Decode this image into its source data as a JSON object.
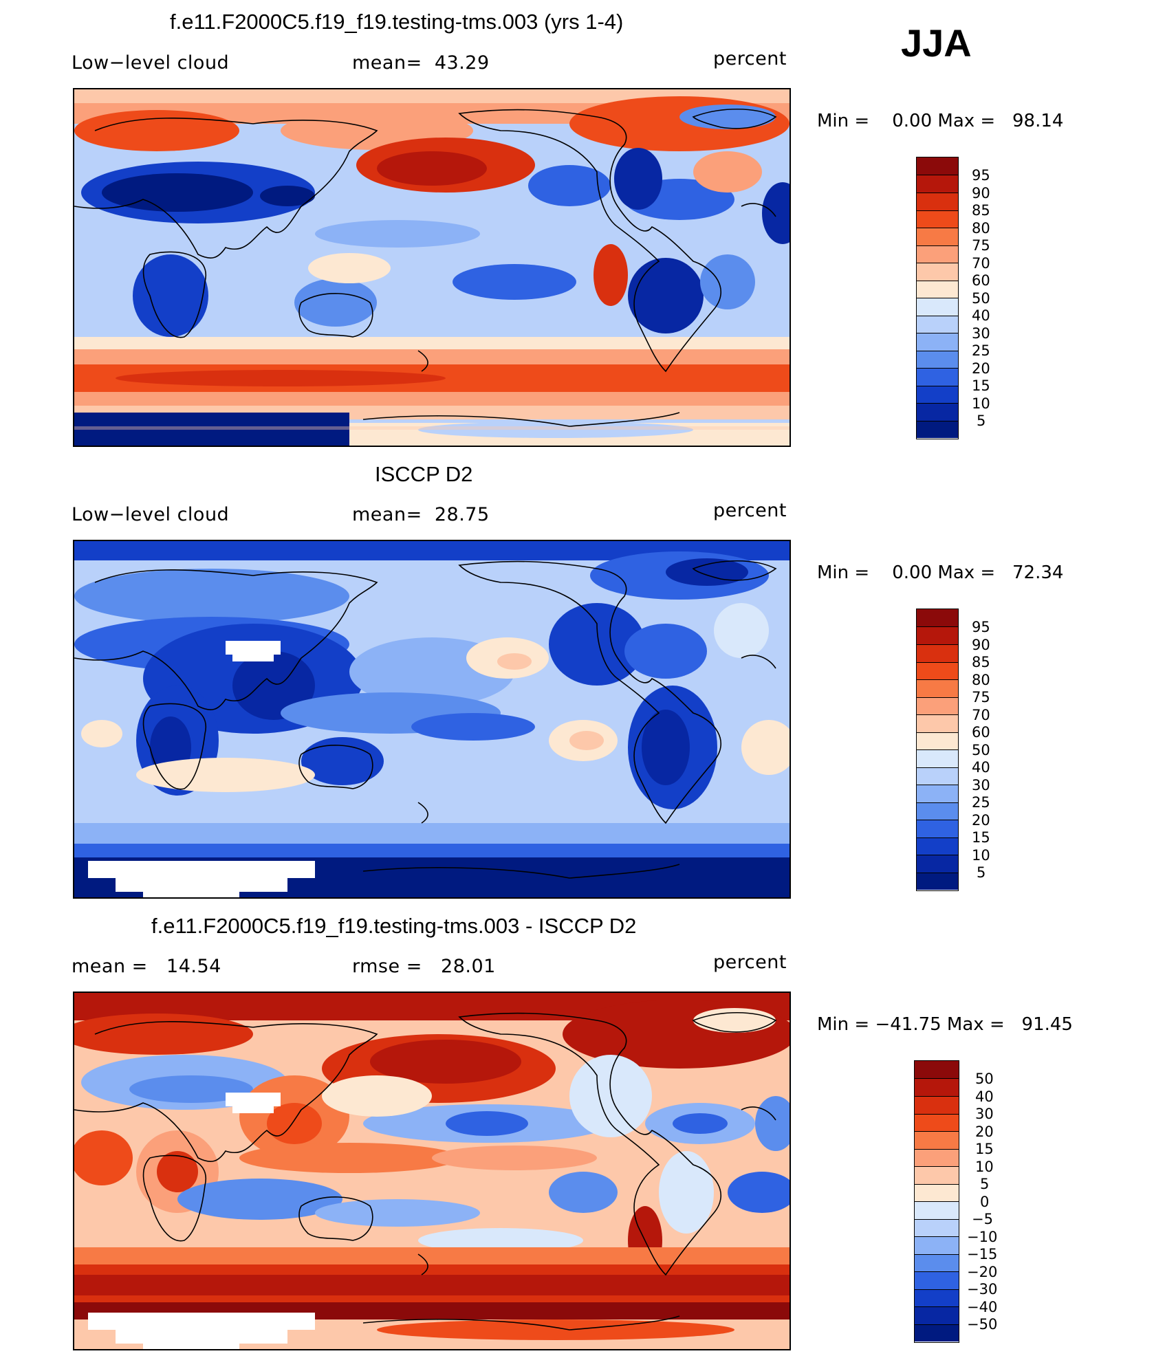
{
  "season": "JJA",
  "panels": [
    {
      "title": "f.e11.F2000C5.f19_f19.testing-tms.003 (yrs 1-4)",
      "left": "Low−level cloud",
      "middle": "mean=  43.29",
      "units": "percent",
      "minmax": "Min =    0.00 Max =   98.14",
      "colorbar_labels": [
        "95",
        "90",
        "85",
        "80",
        "75",
        "70",
        "60",
        "50",
        "40",
        "30",
        "25",
        "20",
        "15",
        "10",
        "5"
      ],
      "colors": [
        "#8b0a0a",
        "#b5170b",
        "#d9300f",
        "#ee4b1a",
        "#f77a45",
        "#fba07a",
        "#fdc8aa",
        "#fde8d2",
        "#d9e8fb",
        "#b9d1fa",
        "#8cb2f6",
        "#5b8ded",
        "#2f62e2",
        "#133fc8",
        "#0727a3",
        "#001a80"
      ]
    },
    {
      "title": "ISCCP D2",
      "left": "Low−level cloud",
      "middle": "mean=  28.75",
      "units": "percent",
      "minmax": "Min =    0.00 Max =   72.34",
      "colorbar_labels": [
        "95",
        "90",
        "85",
        "80",
        "75",
        "70",
        "60",
        "50",
        "40",
        "30",
        "25",
        "20",
        "15",
        "10",
        "5"
      ],
      "colors": [
        "#8b0a0a",
        "#b5170b",
        "#d9300f",
        "#ee4b1a",
        "#f77a45",
        "#fba07a",
        "#fdc8aa",
        "#fde8d2",
        "#d9e8fb",
        "#b9d1fa",
        "#8cb2f6",
        "#5b8ded",
        "#2f62e2",
        "#133fc8",
        "#0727a3",
        "#001a80"
      ]
    },
    {
      "title": "f.e11.F2000C5.f19_f19.testing-tms.003 - ISCCP D2",
      "left": "mean =   14.54",
      "middle": "rmse =   28.01",
      "units": "percent",
      "minmax": "Min = −41.75 Max =   91.45",
      "colorbar_labels": [
        "50",
        "40",
        "30",
        "20",
        "15",
        "10",
        "5",
        "0",
        "−5",
        "−10",
        "−15",
        "−20",
        "−30",
        "−40",
        "−50"
      ],
      "colors": [
        "#8b0a0a",
        "#b5170b",
        "#d9300f",
        "#ee4b1a",
        "#f77a45",
        "#fba07a",
        "#fdc8aa",
        "#fde8d2",
        "#d9e8fb",
        "#b9d1fa",
        "#8cb2f6",
        "#5b8ded",
        "#2f62e2",
        "#133fc8",
        "#0727a3",
        "#001a80"
      ]
    }
  ]
}
